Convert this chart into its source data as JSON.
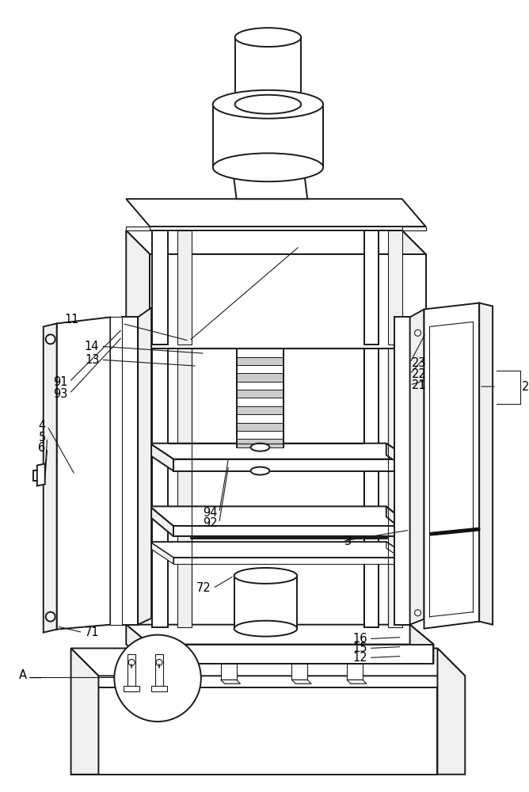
{
  "bg_color": "#ffffff",
  "lc": "#1a1a1a",
  "lc2": "#333333",
  "fw": "#ffffff",
  "fg": "#f0f0f0",
  "fm": "#e0e0e0",
  "fd": "#cccccc"
}
